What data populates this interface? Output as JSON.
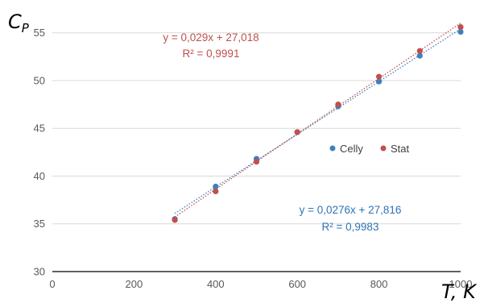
{
  "chart_data": {
    "type": "scatter",
    "xlabel": "T, K",
    "ylabel_main": "C",
    "ylabel_sub": "P",
    "xlim": [
      0,
      1000
    ],
    "ylim": [
      30,
      57
    ],
    "x_ticks": [
      0,
      200,
      400,
      600,
      800,
      1000
    ],
    "y_ticks": [
      30,
      35,
      40,
      45,
      50,
      55
    ],
    "grid": "horizontal",
    "legend_position": "right-center",
    "series": [
      {
        "name": "Celly",
        "color": "#3f7fbf",
        "x": [
          300,
          400,
          500,
          600,
          700,
          800,
          900,
          1000
        ],
        "y": [
          35.5,
          38.9,
          41.8,
          44.6,
          47.3,
          49.9,
          52.6,
          55.1
        ],
        "trendline": {
          "slope": 0.0276,
          "intercept": 27.816,
          "equation": "y = 0,0276x + 27,816",
          "r2": "R² = 0,9983"
        }
      },
      {
        "name": "Stat",
        "color": "#c0504d",
        "x": [
          300,
          400,
          500,
          600,
          700,
          800,
          900,
          1000
        ],
        "y": [
          35.4,
          38.4,
          41.5,
          44.6,
          47.5,
          50.4,
          53.1,
          55.6
        ],
        "trendline": {
          "slope": 0.029,
          "intercept": 27.018,
          "equation": "y = 0,029x + 27,018",
          "r2": "R² = 0,9991"
        }
      }
    ]
  }
}
